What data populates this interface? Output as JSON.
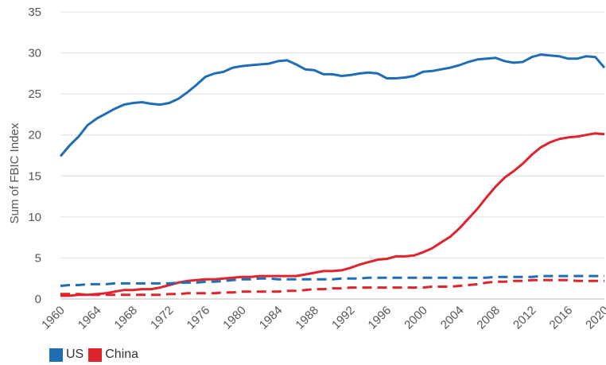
{
  "chart_data": {
    "type": "line",
    "title": "",
    "xlabel": "",
    "ylabel": "Sum of FBIC Index",
    "xlim": [
      1960,
      2020
    ],
    "ylim": [
      0,
      35
    ],
    "yticks": [
      0,
      5,
      10,
      15,
      20,
      25,
      30,
      35
    ],
    "xticks": [
      1960,
      1964,
      1968,
      1972,
      1976,
      1980,
      1984,
      1988,
      1992,
      1996,
      2000,
      2004,
      2008,
      2012,
      2016,
      2020
    ],
    "grid": "horizontal",
    "legend_position": "bottom-left",
    "x": [
      1960,
      1961,
      1962,
      1963,
      1964,
      1965,
      1966,
      1967,
      1968,
      1969,
      1970,
      1971,
      1972,
      1973,
      1974,
      1975,
      1976,
      1977,
      1978,
      1979,
      1980,
      1981,
      1982,
      1983,
      1984,
      1985,
      1986,
      1987,
      1988,
      1989,
      1990,
      1991,
      1992,
      1993,
      1994,
      1995,
      1996,
      1997,
      1998,
      1999,
      2000,
      2001,
      2002,
      2003,
      2004,
      2005,
      2006,
      2007,
      2008,
      2009,
      2010,
      2011,
      2012,
      2013,
      2014,
      2015,
      2016,
      2017,
      2018,
      2019,
      2020
    ],
    "series": [
      {
        "name": "US",
        "color": "#1f6eb5",
        "style": "solid",
        "values": [
          17.4,
          18.7,
          19.8,
          21.2,
          22.0,
          22.6,
          23.2,
          23.7,
          23.9,
          24.0,
          23.8,
          23.7,
          23.9,
          24.4,
          25.2,
          26.1,
          27.1,
          27.5,
          27.7,
          28.2,
          28.4,
          28.5,
          28.6,
          28.7,
          29.0,
          29.1,
          28.6,
          28.0,
          27.9,
          27.4,
          27.4,
          27.2,
          27.3,
          27.5,
          27.6,
          27.5,
          26.9,
          26.9,
          27.0,
          27.2,
          27.7,
          27.8,
          28.0,
          28.2,
          28.5,
          28.9,
          29.2,
          29.3,
          29.4,
          29.0,
          28.8,
          28.9,
          29.5,
          29.8,
          29.7,
          29.6,
          29.3,
          29.3,
          29.6,
          29.5,
          28.2
        ]
      },
      {
        "name": "China",
        "color": "#e0242b",
        "style": "solid",
        "values": [
          0.4,
          0.4,
          0.5,
          0.5,
          0.6,
          0.7,
          0.9,
          1.1,
          1.1,
          1.2,
          1.2,
          1.4,
          1.7,
          2.0,
          2.2,
          2.3,
          2.4,
          2.4,
          2.5,
          2.6,
          2.7,
          2.7,
          2.8,
          2.8,
          2.8,
          2.8,
          2.8,
          3.0,
          3.2,
          3.4,
          3.4,
          3.5,
          3.8,
          4.2,
          4.5,
          4.8,
          4.9,
          5.2,
          5.2,
          5.3,
          5.7,
          6.2,
          6.9,
          7.6,
          8.6,
          9.8,
          11.0,
          12.4,
          13.7,
          14.8,
          15.6,
          16.5,
          17.6,
          18.5,
          19.1,
          19.5,
          19.7,
          19.8,
          20.0,
          20.2,
          20.1
        ]
      },
      {
        "name": "US",
        "color": "#1f6eb5",
        "style": "dashed",
        "values": [
          1.6,
          1.7,
          1.7,
          1.8,
          1.8,
          1.8,
          1.9,
          1.9,
          1.9,
          1.9,
          1.9,
          1.9,
          1.9,
          2.0,
          2.0,
          2.0,
          2.1,
          2.1,
          2.2,
          2.3,
          2.4,
          2.4,
          2.5,
          2.5,
          2.4,
          2.4,
          2.4,
          2.4,
          2.4,
          2.4,
          2.4,
          2.5,
          2.5,
          2.5,
          2.6,
          2.6,
          2.6,
          2.6,
          2.6,
          2.6,
          2.6,
          2.6,
          2.6,
          2.6,
          2.6,
          2.6,
          2.6,
          2.6,
          2.7,
          2.7,
          2.7,
          2.7,
          2.7,
          2.8,
          2.8,
          2.8,
          2.8,
          2.8,
          2.8,
          2.8,
          2.8
        ]
      },
      {
        "name": "China",
        "color": "#e0242b",
        "style": "dashed",
        "values": [
          0.6,
          0.6,
          0.6,
          0.5,
          0.5,
          0.5,
          0.5,
          0.5,
          0.5,
          0.5,
          0.5,
          0.5,
          0.6,
          0.6,
          0.7,
          0.7,
          0.7,
          0.7,
          0.8,
          0.8,
          0.9,
          0.9,
          0.9,
          0.9,
          0.9,
          1.0,
          1.0,
          1.1,
          1.2,
          1.2,
          1.3,
          1.3,
          1.4,
          1.4,
          1.4,
          1.4,
          1.4,
          1.4,
          1.4,
          1.4,
          1.4,
          1.5,
          1.5,
          1.5,
          1.6,
          1.7,
          1.8,
          2.0,
          2.1,
          2.1,
          2.2,
          2.2,
          2.3,
          2.3,
          2.3,
          2.3,
          2.3,
          2.2,
          2.2,
          2.2,
          2.2
        ]
      }
    ],
    "legend": [
      {
        "label": "US",
        "color": "#1f6eb5"
      },
      {
        "label": "China",
        "color": "#e0242b"
      }
    ]
  }
}
